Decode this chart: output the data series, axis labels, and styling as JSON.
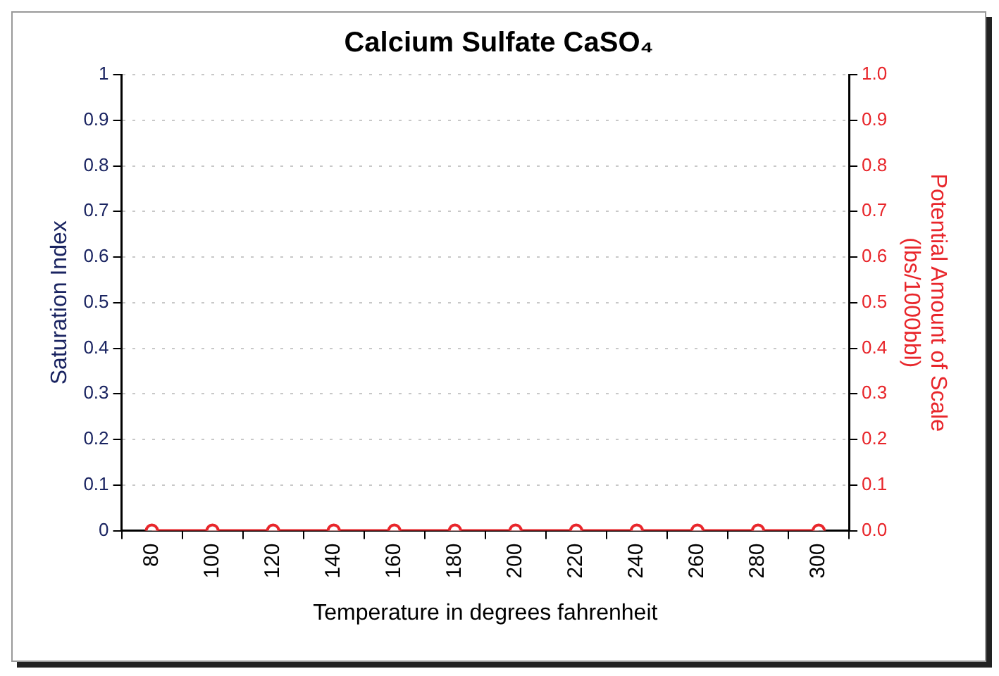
{
  "chart_data": {
    "type": "line",
    "title": "Calcium Sulfate CaSO₄",
    "xlabel": "Temperature in degrees fahrenheit",
    "ylabel": "Saturation Index",
    "y2label": "Potential Amount of Scale (lbs/1000bbl)",
    "categories": [
      "80",
      "100",
      "120",
      "140",
      "160",
      "180",
      "200",
      "220",
      "240",
      "260",
      "280",
      "300"
    ],
    "series": [
      {
        "color": "#e8262b",
        "axis": "y2",
        "values": [
          0,
          0,
          0,
          0,
          0,
          0,
          0,
          0,
          0,
          0,
          0,
          0
        ]
      }
    ],
    "ylim": [
      0,
      1
    ],
    "yticks": [
      0,
      0.1,
      0.2,
      0.3,
      0.4,
      0.5,
      0.6,
      0.7,
      0.8,
      0.9,
      1
    ],
    "y2lim": [
      0,
      1
    ],
    "y2ticks": [
      {
        "value": 0,
        "label": "0.0"
      },
      {
        "value": 0.1,
        "label": "0.1"
      },
      {
        "value": 0.2,
        "label": "0.2"
      },
      {
        "value": 0.3,
        "label": "0.3"
      },
      {
        "value": 0.4,
        "label": "0.4"
      },
      {
        "value": 0.5,
        "label": "0.5"
      },
      {
        "value": 0.6,
        "label": "0.6"
      },
      {
        "value": 0.7,
        "label": "0.7"
      },
      {
        "value": 0.8,
        "label": "0.8"
      },
      {
        "value": 0.9,
        "label": "0.9"
      },
      {
        "value": 1,
        "label": "1.0"
      }
    ],
    "grid": "y",
    "legend": false,
    "marker": "circle",
    "line_style": "solid"
  }
}
